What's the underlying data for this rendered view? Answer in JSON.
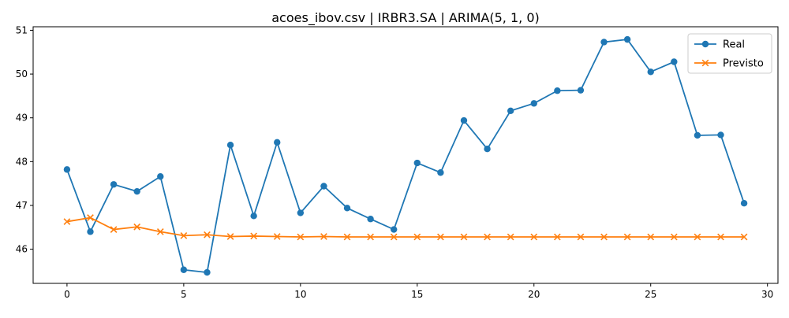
{
  "chart_data": {
    "type": "line",
    "title": "acoes_ibov.csv | IRBR3.SA | ARIMA(5, 1, 0)",
    "xlabel": "",
    "ylabel": "",
    "xlim": [
      -1.45,
      30.45
    ],
    "ylim": [
      45.22,
      51.08
    ],
    "xticks": [
      0,
      5,
      10,
      15,
      20,
      25,
      30
    ],
    "yticks": [
      46,
      47,
      48,
      49,
      50,
      51
    ],
    "grid": false,
    "legend_position": "top-right",
    "x": [
      0,
      1,
      2,
      3,
      4,
      5,
      6,
      7,
      8,
      9,
      10,
      11,
      12,
      13,
      14,
      15,
      16,
      17,
      18,
      19,
      20,
      21,
      22,
      23,
      24,
      25,
      26,
      27,
      28,
      29
    ],
    "series": [
      {
        "name": "Real",
        "color": "#1f77b4",
        "marker": "circle",
        "values": [
          47.82,
          46.4,
          47.48,
          47.32,
          47.66,
          45.53,
          45.47,
          48.38,
          46.76,
          48.44,
          46.83,
          47.44,
          46.94,
          46.69,
          46.45,
          47.97,
          47.75,
          48.94,
          48.29,
          49.16,
          49.33,
          49.62,
          49.63,
          50.73,
          50.79,
          50.05,
          50.28,
          48.6,
          48.61,
          47.05
        ]
      },
      {
        "name": "Previsto",
        "color": "#ff7f0e",
        "marker": "x",
        "values": [
          46.63,
          46.72,
          46.45,
          46.51,
          46.4,
          46.31,
          46.33,
          46.29,
          46.3,
          46.29,
          46.28,
          46.29,
          46.28,
          46.28,
          46.28,
          46.28,
          46.28,
          46.28,
          46.28,
          46.28,
          46.28,
          46.28,
          46.28,
          46.28,
          46.28,
          46.28,
          46.28,
          46.28,
          46.28,
          46.28
        ]
      }
    ]
  }
}
